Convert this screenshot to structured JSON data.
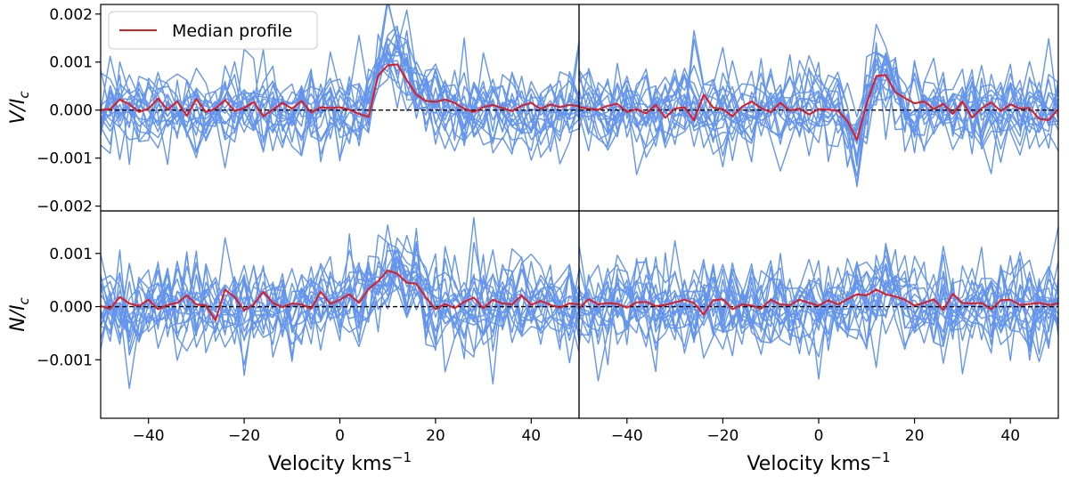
{
  "chart_data": {
    "type": "line",
    "legend": {
      "label": "Median profile",
      "placement": "top-left"
    },
    "colors": {
      "observations": "#6495ED",
      "median": "#E31A1C",
      "zero_line": "#000000"
    },
    "grid": false,
    "shared_x": {
      "label_prefix": "Velocity kms",
      "label_superscript": "−1",
      "range": [
        -50,
        50
      ],
      "ticks": [
        -40,
        -20,
        0,
        20,
        40
      ],
      "tick_labels": [
        "−40",
        "−20",
        "0",
        "20",
        "40"
      ]
    },
    "rows": [
      {
        "ylabel": "V/I",
        "ylabel_sub": "c",
        "ylim": [
          -0.0021,
          0.0022
        ],
        "yticks": [
          -0.002,
          -0.001,
          0,
          0.001,
          0.002
        ],
        "ytick_labels": [
          "−0.002",
          "−0.001",
          "0.000",
          "0.001",
          "0.002"
        ]
      },
      {
        "ylabel": "N/I",
        "ylabel_sub": "c",
        "ylim": [
          -0.0021,
          0.0018
        ],
        "yticks": [
          -0.001,
          0,
          0.001
        ],
        "ytick_labels": [
          "−0.001",
          "0.000",
          "0.001"
        ]
      }
    ],
    "panels": [
      {
        "row": 0,
        "col": 0,
        "noise_amplitude": 0.00045,
        "seed": 11,
        "x": [
          -50,
          -48,
          -46,
          -44,
          -42,
          -40,
          -38,
          -36,
          -34,
          -32,
          -30,
          -28,
          -26,
          -24,
          -22,
          -20,
          -18,
          -16,
          -14,
          -12,
          -10,
          -8,
          -6,
          -4,
          -2,
          0,
          2,
          4,
          6,
          8,
          10,
          12,
          14,
          16,
          18,
          20,
          22,
          24,
          26,
          28,
          30,
          32,
          34,
          36,
          38,
          40,
          42,
          44,
          46,
          48,
          50
        ],
        "median": [
          1e-05,
          2e-05,
          0.00022,
          0.00012,
          -4e-05,
          3e-05,
          0.00024,
          1e-05,
          0.00018,
          -0.00012,
          0.00023,
          -4e-05,
          3e-05,
          0.00021,
          -2e-05,
          4e-05,
          0.00017,
          -0.00013,
          1e-05,
          0.00015,
          3e-05,
          0.00019,
          -5e-05,
          6e-05,
          4e-05,
          6e-05,
          1e-05,
          -8e-05,
          -0.00014,
          0.00072,
          0.00093,
          0.00095,
          0.00062,
          0.00032,
          0.00019,
          0.00017,
          0.00022,
          0.00015,
          3e-05,
          -4e-05,
          6e-05,
          0.00011,
          4e-05,
          -2e-05,
          9e-05,
          0.00015,
          2e-05,
          0.00012,
          6e-05,
          0.00011,
          8e-05
        ],
        "signal": [
          0,
          0,
          0,
          0,
          0,
          0,
          0,
          0,
          0,
          0,
          0,
          0,
          0,
          0,
          0,
          0,
          0,
          0,
          0,
          0,
          0,
          0,
          0,
          0,
          0,
          0,
          0,
          0,
          0.0001,
          0.0008,
          0.00105,
          0.00115,
          0.0008,
          0.0004,
          0.00025,
          0.0002,
          0.00015,
          0.0001,
          5e-05,
          0,
          0,
          0,
          0,
          0,
          0,
          0,
          0,
          0,
          0,
          0,
          0
        ]
      },
      {
        "row": 0,
        "col": 1,
        "noise_amplitude": 0.00045,
        "seed": 29,
        "x": [
          -50,
          -48,
          -46,
          -44,
          -42,
          -40,
          -38,
          -36,
          -34,
          -32,
          -30,
          -28,
          -26,
          -24,
          -22,
          -20,
          -18,
          -16,
          -14,
          -12,
          -10,
          -8,
          -6,
          -4,
          -2,
          0,
          2,
          4,
          6,
          8,
          10,
          12,
          14,
          16,
          18,
          20,
          22,
          24,
          26,
          28,
          30,
          32,
          34,
          36,
          38,
          40,
          42,
          44,
          46,
          48,
          50
        ],
        "median": [
          6e-05,
          3e-05,
          1e-05,
          9e-05,
          0.00013,
          -4e-05,
          2e-05,
          -7e-05,
          0.00011,
          -0.00016,
          3e-05,
          6e-05,
          -0.00021,
          0.00032,
          5e-05,
          2e-05,
          -0.00013,
          7e-05,
          0.00018,
          4e-05,
          -4e-05,
          0.00015,
          -1e-05,
          3e-05,
          -9e-05,
          2e-05,
          1e-05,
          -1e-05,
          -0.00023,
          -0.00062,
          0.00013,
          0.00071,
          0.00073,
          0.00037,
          0.00025,
          0.00014,
          0.00018,
          2e-05,
          0.00013,
          -8e-05,
          0.00018,
          -0.00016,
          4e-05,
          0.00016,
          -2e-05,
          0.00012,
          3e-05,
          4e-05,
          -0.00018,
          -0.00021,
          2e-05
        ],
        "signal": [
          0,
          0,
          0,
          0,
          0,
          0,
          0,
          0,
          0,
          0,
          0,
          0,
          0,
          0,
          0,
          0,
          0,
          0,
          0,
          0,
          0,
          0,
          0,
          0,
          0,
          0,
          0,
          0,
          -0.0002,
          -0.0007,
          0.0002,
          0.0008,
          0.0008,
          0.0004,
          0.0002,
          0.0001,
          0,
          0,
          0,
          0,
          0,
          0,
          0,
          0,
          0,
          0,
          0,
          0,
          0,
          0,
          0
        ]
      },
      {
        "row": 1,
        "col": 0,
        "noise_amplitude": 0.00045,
        "seed": 47,
        "x": [
          -50,
          -48,
          -46,
          -44,
          -42,
          -40,
          -38,
          -36,
          -34,
          -32,
          -30,
          -28,
          -26,
          -24,
          -22,
          -20,
          -18,
          -16,
          -14,
          -12,
          -10,
          -8,
          -6,
          -4,
          -2,
          0,
          2,
          4,
          6,
          8,
          10,
          12,
          14,
          16,
          18,
          20,
          22,
          24,
          26,
          28,
          30,
          32,
          34,
          36,
          38,
          40,
          42,
          44,
          46,
          48,
          50
        ],
        "median": [
          1e-05,
          -4e-05,
          0.00018,
          6e-05,
          1e-05,
          0.00013,
          -5e-05,
          3e-05,
          7e-05,
          0.00021,
          4e-05,
          2e-05,
          -0.00026,
          0.00032,
          0.00018,
          -7e-05,
          4e-05,
          0.00028,
          7e-05,
          -1e-05,
          6e-05,
          4e-05,
          -4e-05,
          0.00028,
          5e-05,
          0.00013,
          0.00023,
          7e-05,
          0.00033,
          0.00048,
          0.00068,
          0.00062,
          0.00045,
          0.00043,
          0.00017,
          -5e-05,
          5e-05,
          -3e-05,
          9e-05,
          0.00017,
          -3e-05,
          0.00013,
          6e-05,
          4e-05,
          0.00021,
          3e-05,
          0.00011,
          3e-05,
          -2e-05,
          6e-05,
          4e-05
        ],
        "signal": [
          0,
          0,
          0,
          0,
          0,
          0,
          0,
          0,
          0,
          0,
          0,
          0,
          0,
          0,
          0,
          0,
          0,
          0,
          0,
          0,
          0,
          0,
          0,
          0,
          0,
          0.0001,
          0.0002,
          0.0002,
          0.0003,
          0.0005,
          0.0007,
          0.0007,
          0.0005,
          0.0004,
          0.0002,
          0.0001,
          0,
          0,
          0,
          0,
          0,
          0,
          0,
          0,
          0,
          0,
          0,
          0,
          0,
          0,
          0
        ]
      },
      {
        "row": 1,
        "col": 1,
        "noise_amplitude": 0.00045,
        "seed": 83,
        "x": [
          -50,
          -48,
          -46,
          -44,
          -42,
          -40,
          -38,
          -36,
          -34,
          -32,
          -30,
          -28,
          -26,
          -24,
          -22,
          -20,
          -18,
          -16,
          -14,
          -12,
          -10,
          -8,
          -6,
          -4,
          -2,
          0,
          2,
          4,
          6,
          8,
          10,
          12,
          14,
          16,
          18,
          20,
          22,
          24,
          26,
          28,
          30,
          32,
          34,
          36,
          38,
          40,
          42,
          44,
          46,
          48,
          50
        ],
        "median": [
          -3e-05,
          0.00014,
          4e-05,
          7e-05,
          5e-05,
          -2e-05,
          8e-05,
          9e-05,
          1e-05,
          3e-05,
          8e-05,
          0.00013,
          7e-05,
          -0.00015,
          0.00012,
          0.00014,
          -5e-05,
          4e-05,
          2e-05,
          -4e-05,
          0.00013,
          4e-05,
          3e-05,
          0.00013,
          7e-05,
          2e-05,
          0.00012,
          4e-05,
          0.00014,
          0.00023,
          0.00021,
          0.00032,
          0.00023,
          0.00019,
          0.00013,
          2e-05,
          7e-05,
          0.00014,
          -6e-05,
          0.00024,
          7e-05,
          6e-05,
          7e-05,
          -5e-05,
          0.00012,
          0.00013,
          3e-05,
          5e-05,
          7e-05,
          3e-05,
          6e-05
        ],
        "signal": [
          0,
          0,
          0,
          0,
          0,
          0,
          0,
          0,
          0,
          0,
          0,
          0,
          0,
          0,
          0,
          0,
          0,
          0,
          0,
          0,
          0,
          0,
          0,
          0,
          0,
          0,
          0.0001,
          0.0001,
          0.0001,
          0.0002,
          0.0002,
          0.0003,
          0.0002,
          0.0002,
          0.0001,
          0,
          0,
          0,
          0,
          0,
          0,
          0,
          0,
          0,
          0,
          0,
          0,
          0,
          0,
          0,
          0
        ]
      }
    ],
    "observation_count": 18
  }
}
